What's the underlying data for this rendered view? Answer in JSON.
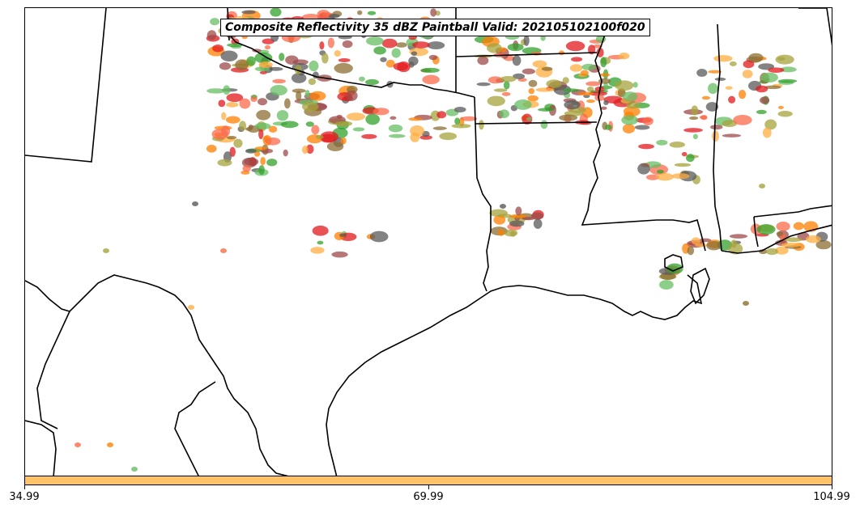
{
  "title": "Composite Reflectivity 35 dBZ Paintball Valid: 202105102100f020",
  "colorbar": {
    "color": "#ffc266",
    "ticks": [
      "34.99",
      "69.99",
      "104.99"
    ]
  },
  "paintball_colors": [
    "#e31a1c",
    "#ff7f00",
    "#8c6d31",
    "#33a02c",
    "#5a5a5a",
    "#a6a33c",
    "#fb6a4a",
    "#66bd63",
    "#ffae42",
    "#9e4a4a"
  ]
}
